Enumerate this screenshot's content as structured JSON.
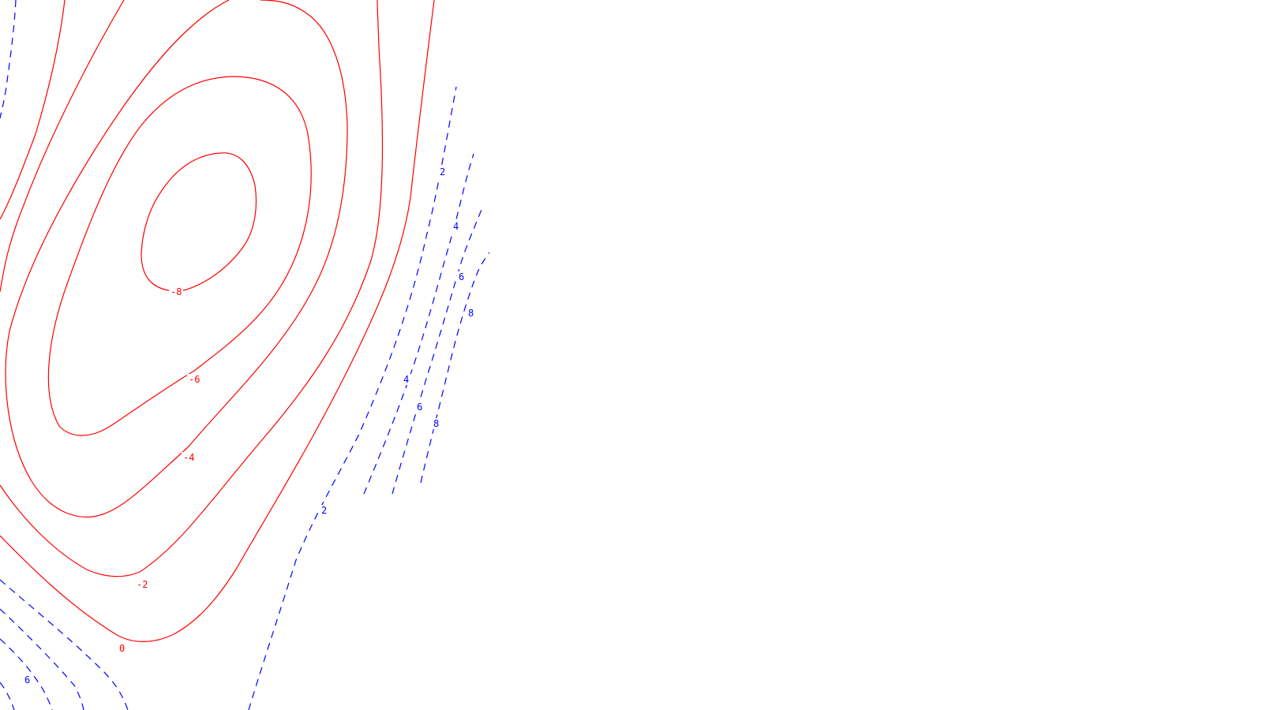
{
  "chart_data": {
    "type": "contour",
    "title": "",
    "xlabel": "",
    "ylabel": "",
    "grid": false,
    "legend": "none",
    "colors": {
      "negative": "#ff0000",
      "positive": "#0000ff",
      "background": "#ffffff"
    },
    "negative_line_style": "solid",
    "positive_line_style": "dashed",
    "contour_levels": [
      -8,
      -6,
      -4,
      -2,
      0,
      2,
      4,
      6,
      8
    ],
    "contour_labels": [
      {
        "level": -8,
        "text": "-8"
      },
      {
        "level": -6,
        "text": "-6"
      },
      {
        "level": -4,
        "text": "-4"
      },
      {
        "level": -2,
        "text": "-2"
      },
      {
        "level": 0,
        "text": "0"
      },
      {
        "level": 2,
        "text": "2"
      },
      {
        "level": 2,
        "text": "2"
      },
      {
        "level": 4,
        "text": "4"
      },
      {
        "level": 4,
        "text": "4"
      },
      {
        "level": 6,
        "text": "6"
      },
      {
        "level": 6,
        "text": "6"
      },
      {
        "level": 6,
        "text": "6"
      },
      {
        "level": 8,
        "text": "8"
      },
      {
        "level": 8,
        "text": "8"
      }
    ]
  }
}
